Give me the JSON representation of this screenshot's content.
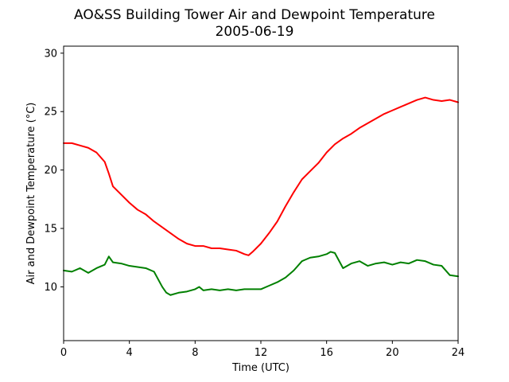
{
  "chart_data": {
    "type": "line",
    "title": "AO&SS Building Tower Air and Dewpoint Temperature",
    "subtitle": "2005-06-19",
    "xlabel": "Time (UTC)",
    "ylabel": "Air and Dewpoint Temperature (°C)",
    "xlim": [
      0,
      24
    ],
    "ylim": [
      5.4,
      30.6
    ],
    "xticks": [
      0,
      4,
      8,
      12,
      16,
      20,
      24
    ],
    "xtick_labels": [
      "0",
      "4",
      "8",
      "12",
      "16",
      "20",
      "24"
    ],
    "yticks": [
      10,
      15,
      20,
      25,
      30
    ],
    "ytick_labels": [
      "10",
      "15",
      "20",
      "25",
      "30"
    ],
    "grid": false,
    "legend": "none",
    "series": [
      {
        "color": "#ff0000",
        "x": [
          0,
          0.5,
          1,
          1.5,
          2,
          2.25,
          2.5,
          2.75,
          3,
          3.5,
          4,
          4.5,
          5,
          5.5,
          6,
          6.5,
          7,
          7.5,
          8,
          8.5,
          9,
          9.5,
          10,
          10.5,
          11,
          11.25,
          11.5,
          12,
          12.5,
          13,
          13.5,
          14,
          14.5,
          15,
          15.5,
          16,
          16.5,
          17,
          17.5,
          18,
          18.5,
          19,
          19.5,
          20,
          20.5,
          21,
          21.5,
          22,
          22.5,
          23,
          23.5,
          24
        ],
        "y": [
          22.3,
          22.3,
          22.1,
          21.9,
          21.5,
          21.1,
          20.7,
          19.7,
          18.6,
          17.9,
          17.2,
          16.6,
          16.2,
          15.6,
          15.1,
          14.6,
          14.1,
          13.7,
          13.5,
          13.5,
          13.3,
          13.3,
          13.2,
          13.1,
          12.8,
          12.7,
          13.0,
          13.7,
          14.6,
          15.6,
          16.9,
          18.1,
          19.2,
          19.9,
          20.6,
          21.5,
          22.2,
          22.7,
          23.1,
          23.6,
          24.0,
          24.4,
          24.8,
          25.1,
          25.4,
          25.7,
          26.0,
          26.2,
          26.0,
          25.9,
          26.0,
          25.8
        ]
      },
      {
        "color": "#008000",
        "x": [
          0,
          0.5,
          1,
          1.5,
          2,
          2.5,
          2.75,
          3,
          3.5,
          4,
          4.5,
          5,
          5.5,
          6,
          6.25,
          6.5,
          7,
          7.5,
          8,
          8.25,
          8.5,
          9,
          9.5,
          10,
          10.5,
          11,
          11.5,
          12,
          12.5,
          13,
          13.5,
          14,
          14.5,
          15,
          15.5,
          16,
          16.25,
          16.5,
          17,
          17.5,
          18,
          18.5,
          19,
          19.5,
          20,
          20.5,
          21,
          21.5,
          22,
          22.5,
          23,
          23.5,
          24
        ],
        "y": [
          11.4,
          11.3,
          11.6,
          11.2,
          11.6,
          11.9,
          12.6,
          12.1,
          12.0,
          11.8,
          11.7,
          11.6,
          11.3,
          10.0,
          9.5,
          9.3,
          9.5,
          9.6,
          9.8,
          10.0,
          9.7,
          9.8,
          9.7,
          9.8,
          9.7,
          9.8,
          9.8,
          9.8,
          10.1,
          10.4,
          10.8,
          11.4,
          12.2,
          12.5,
          12.6,
          12.8,
          13.0,
          12.9,
          11.6,
          12.0,
          12.2,
          11.8,
          12.0,
          12.1,
          11.9,
          12.1,
          12.0,
          12.3,
          12.2,
          11.9,
          11.8,
          11.0,
          10.9
        ]
      }
    ]
  }
}
